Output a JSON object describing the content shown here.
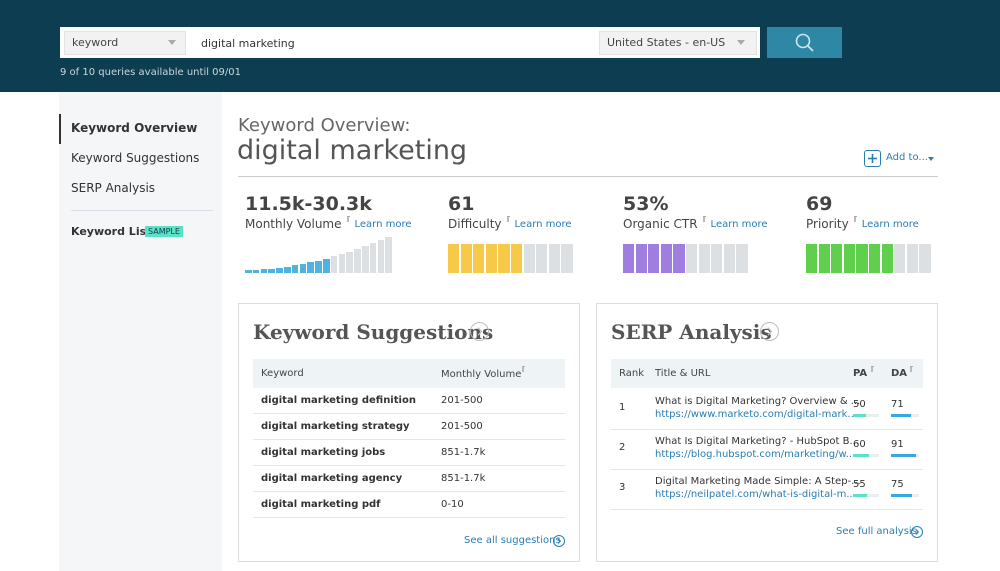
{
  "search": {
    "mode": "keyword",
    "query": "digital marketing",
    "locale": "United States - en-US",
    "quota": "9 of 10 queries available until 09/01"
  },
  "sidebar": {
    "nav": [
      "Keyword Overview",
      "Keyword Suggestions",
      "SERP Analysis"
    ],
    "lists": "Keyword Lists",
    "badge": "SAMPLE"
  },
  "overview": {
    "heading": "Keyword Overview:",
    "keyword": "digital marketing",
    "add": "Add to...",
    "metrics": [
      {
        "value": "11.5k-30.3k",
        "label": "Monthly Volume",
        "link": "Learn more",
        "color": "#4fb3e0"
      },
      {
        "value": 61,
        "label": "Difficulty",
        "link": "Learn more",
        "color": "#f7c948"
      },
      {
        "value": "53%",
        "label": "Organic CTR",
        "link": "Learn more",
        "color": "#a07ee0"
      },
      {
        "value": 69,
        "label": "Priority",
        "link": "Learn more",
        "color": "#5fcf4c"
      }
    ]
  },
  "suggestions": {
    "title": "Keyword Suggestions",
    "columns": [
      "Keyword",
      "Monthly Volume"
    ],
    "rows": [
      [
        "digital marketing definition",
        "201-500"
      ],
      [
        "digital marketing strategy",
        "201-500"
      ],
      [
        "digital marketing jobs",
        "851-1.7k"
      ],
      [
        "digital marketing agency",
        "851-1.7k"
      ],
      [
        "digital marketing pdf",
        "0-10"
      ]
    ],
    "footer": "See all suggestions"
  },
  "serp": {
    "title": "SERP Analysis",
    "columns": [
      "Rank",
      "Title & URL",
      "PA",
      "DA"
    ],
    "rows": [
      {
        "rank": 1,
        "title": "What is Digital Marketing? Overview & ...",
        "url": "https://www.marketo.com/digital-mark...",
        "pa": 50,
        "da": 71
      },
      {
        "rank": 2,
        "title": "What Is Digital Marketing? - HubSpot B...",
        "url": "https://blog.hubspot.com/marketing/w...",
        "pa": 60,
        "da": 91
      },
      {
        "rank": 3,
        "title": "Digital Marketing Made Simple: A Step-...",
        "url": "https://neilpatel.com/what-is-digital-m...",
        "pa": 55,
        "da": 75
      }
    ],
    "footer": "See full analysis"
  }
}
